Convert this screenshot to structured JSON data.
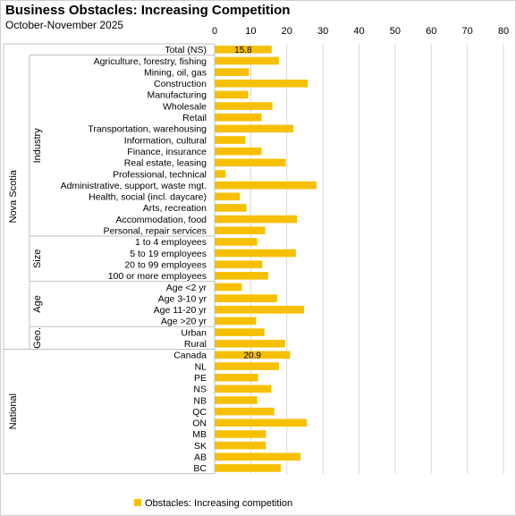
{
  "title": "Business Obstacles: Increasing Competition",
  "subtitle": "October-November 2025",
  "legend": {
    "label": "Obstacles: Increasing competition",
    "color": "#f6c000"
  },
  "chart_data": {
    "type": "bar",
    "orientation": "horizontal",
    "x_axis_position": "top",
    "xlim": [
      0,
      80
    ],
    "ticks": [
      0,
      10,
      20,
      30,
      40,
      50,
      60,
      70,
      80
    ],
    "grid": true,
    "bar_color": "#f6c000",
    "legend_position": "bottom",
    "categories": [
      "Total (NS)",
      "Agriculture, forestry, fishing",
      "Mining, oil, gas",
      "Construction",
      "Manufacturing",
      "Wholesale",
      "Retail",
      "Transportation, warehousing",
      "Information, cultural",
      "Finance, insurance",
      "Real estate, leasing",
      "Professional, technical",
      "Administrative, support, waste mgt.",
      "Health, social (incl. daycare)",
      "Arts, recreation",
      "Accommodation, food",
      "Personal, repair services",
      "1 to 4 employees",
      "5 to 19 employees",
      "20 to 99 employees",
      "100 or more employees",
      "Age <2 yr",
      "Age 3-10 yr",
      "Age 11-20 yr",
      "Age >20 yr",
      "Urban",
      "Rural",
      "Canada",
      "NL",
      "PE",
      "NS",
      "NB",
      "QC",
      "ON",
      "MB",
      "SK",
      "AB",
      "BC"
    ],
    "series": [
      {
        "name": "Obstacles: Increasing competition",
        "values": [
          15.8,
          17.8,
          9.5,
          25.8,
          9.3,
          16.0,
          13.0,
          21.8,
          8.5,
          13.0,
          19.7,
          3.0,
          28.2,
          7.0,
          8.8,
          22.8,
          14.0,
          11.8,
          22.5,
          13.2,
          14.8,
          7.5,
          17.3,
          24.8,
          11.5,
          13.8,
          19.5,
          20.9,
          17.8,
          12.0,
          15.7,
          11.8,
          16.5,
          25.5,
          14.2,
          14.2,
          23.8,
          18.3
        ]
      }
    ],
    "data_labels": [
      {
        "category": "Total (NS)",
        "text": "15.8"
      },
      {
        "category": "Canada",
        "text": "20.9"
      }
    ],
    "groups": [
      {
        "label": "Nova Scotia",
        "start": 0,
        "end": 26,
        "subgroups": [
          {
            "label": "Industry",
            "start": 1,
            "end": 16
          },
          {
            "label": "Size",
            "start": 17,
            "end": 20
          },
          {
            "label": "Age",
            "start": 21,
            "end": 24
          },
          {
            "label": "Geo.",
            "start": 25,
            "end": 26
          }
        ]
      },
      {
        "label": "National",
        "start": 27,
        "end": 37,
        "subgroups": []
      }
    ]
  }
}
